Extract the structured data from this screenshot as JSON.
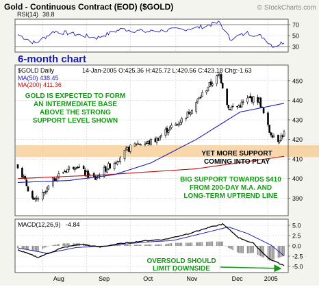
{
  "header": {
    "title": "Gold - Continuous Contract (EOD) ($GOLD)",
    "watermark": "© StockCharts.com"
  },
  "colors": {
    "frame_bg": "#f4f4ee",
    "panel_bg": "#ffffff",
    "grid": "#c8c8c8",
    "candle_body": "#000000",
    "ma50": "#1f1fb4",
    "ma200": "#c01010",
    "support_band": "#f6c98e",
    "annotation_green": "#149914",
    "annotation_black": "#000000",
    "six_month_label": "#1a1ab0",
    "macd_line": "#000000",
    "signal_line": "#1f1fb4",
    "histogram": "#8c8c8c",
    "rsi_line": "#1f1fb4",
    "arrow": "#149914"
  },
  "rsi_panel": {
    "label": "RSI(14)",
    "value": "38.8",
    "ticks": [
      "70",
      "50",
      "30"
    ]
  },
  "price_panel": {
    "big_label": "6-month chart",
    "legend_label": "$GOLD Daily",
    "quote": "14-Jan-2005 O:425.36 H:425.72 L:420.56 C:423.18 Chg:-1.63",
    "ma50_label": "MA(50) 438.45",
    "ma200_label": "MA(200) 411.36",
    "ticks": [
      "450",
      "440",
      "430",
      "420",
      "410",
      "400",
      "390"
    ]
  },
  "macd_panel": {
    "label": "MACD(12,26,9)",
    "value": "-4.84",
    "ticks": [
      "5.0",
      "2.5",
      "0.0",
      "-2.5",
      "-5.0"
    ]
  },
  "x_axis": {
    "labels": [
      "Aug",
      "Sep",
      "Oct",
      "Nov",
      "Dec",
      "2005"
    ]
  },
  "annotations": {
    "gold_base": [
      "GOLD IS EXPECTED TO FORM",
      "AN INTERMEDIATE BASE",
      "ABOVE THE STRONG",
      "SUPPORT LEVEL SHOWN"
    ],
    "more_support": [
      "YET MORE SUPPORT",
      "COMING INTO PLAY"
    ],
    "big_support": [
      "BIG SUPPORT TOWARDS $410",
      "FROM 200-DAY M.A. AND",
      "LONG-TERM UPTREND LINE"
    ],
    "oversold": [
      "OVERSOLD SHOULD",
      "LIMIT DOWNSIDE"
    ]
  },
  "chart_data": {
    "type": "candlestick",
    "x_range": [
      "2004-07-16",
      "2005-01-14"
    ],
    "price_range": [
      381,
      458
    ],
    "support_band": [
      411,
      417
    ],
    "price_waypoints": [
      [
        "2004-07-16",
        407
      ],
      [
        "2004-07-27",
        388
      ],
      [
        "2004-08-03",
        392
      ],
      [
        "2004-08-10",
        400
      ],
      [
        "2004-08-17",
        404
      ],
      [
        "2004-08-25",
        407
      ],
      [
        "2004-09-01",
        402
      ],
      [
        "2004-09-07",
        400
      ],
      [
        "2004-09-14",
        405
      ],
      [
        "2004-09-21",
        409
      ],
      [
        "2004-09-28",
        414
      ],
      [
        "2004-10-05",
        418
      ],
      [
        "2004-10-12",
        418
      ],
      [
        "2004-10-19",
        420
      ],
      [
        "2004-10-26",
        425
      ],
      [
        "2004-11-02",
        428
      ],
      [
        "2004-11-09",
        433
      ],
      [
        "2004-11-16",
        440
      ],
      [
        "2004-11-23",
        447
      ],
      [
        "2004-12-01",
        453
      ],
      [
        "2004-12-07",
        436
      ],
      [
        "2004-12-14",
        437
      ],
      [
        "2004-12-21",
        441
      ],
      [
        "2004-12-28",
        440
      ],
      [
        "2005-01-04",
        424
      ],
      [
        "2005-01-10",
        420
      ],
      [
        "2005-01-14",
        423
      ]
    ],
    "ma50_waypoints": [
      [
        "2004-07-16",
        398
      ],
      [
        "2004-08-20",
        399
      ],
      [
        "2004-09-20",
        402
      ],
      [
        "2004-10-15",
        408
      ],
      [
        "2004-11-15",
        420
      ],
      [
        "2004-12-15",
        434
      ],
      [
        "2005-01-14",
        438.45
      ]
    ],
    "ma200_waypoints": [
      [
        "2004-07-16",
        400
      ],
      [
        "2004-09-15",
        402
      ],
      [
        "2004-11-15",
        405
      ],
      [
        "2005-01-14",
        411.36
      ]
    ],
    "rsi_range": [
      20,
      80
    ],
    "rsi_waypoints": [
      [
        "2004-07-16",
        52
      ],
      [
        "2004-07-28",
        36
      ],
      [
        "2004-08-10",
        58
      ],
      [
        "2004-08-25",
        52
      ],
      [
        "2004-09-08",
        46
      ],
      [
        "2004-09-25",
        62
      ],
      [
        "2004-10-12",
        57
      ],
      [
        "2004-10-28",
        60
      ],
      [
        "2004-11-15",
        64
      ],
      [
        "2004-12-01",
        74
      ],
      [
        "2004-12-08",
        44
      ],
      [
        "2004-12-20",
        55
      ],
      [
        "2004-12-30",
        48
      ],
      [
        "2005-01-07",
        30
      ],
      [
        "2005-01-14",
        38.8
      ]
    ],
    "macd_range": [
      -6.5,
      6.5
    ],
    "macd_waypoints": [
      [
        "2004-07-16",
        -1.0
      ],
      [
        "2004-07-30",
        -2.8
      ],
      [
        "2004-08-15",
        -0.5
      ],
      [
        "2004-08-28",
        0.4
      ],
      [
        "2004-09-10",
        -0.3
      ],
      [
        "2004-09-25",
        0.6
      ],
      [
        "2004-10-10",
        1.2
      ],
      [
        "2004-10-25",
        1.6
      ],
      [
        "2004-11-10",
        3.0
      ],
      [
        "2004-11-25",
        4.6
      ],
      [
        "2004-12-03",
        5.3
      ],
      [
        "2004-12-14",
        2.0
      ],
      [
        "2004-12-24",
        0.6
      ],
      [
        "2005-01-04",
        -3.2
      ],
      [
        "2005-01-14",
        -4.84
      ]
    ],
    "signal_waypoints": [
      [
        "2004-07-16",
        -0.5
      ],
      [
        "2004-08-05",
        -1.8
      ],
      [
        "2004-08-25",
        -0.4
      ],
      [
        "2004-09-15",
        0.0
      ],
      [
        "2004-10-10",
        0.9
      ],
      [
        "2004-10-30",
        1.3
      ],
      [
        "2004-11-20",
        3.1
      ],
      [
        "2004-12-07",
        4.6
      ],
      [
        "2004-12-20",
        3.0
      ],
      [
        "2005-01-05",
        0.2
      ],
      [
        "2005-01-14",
        -2.4
      ]
    ]
  }
}
